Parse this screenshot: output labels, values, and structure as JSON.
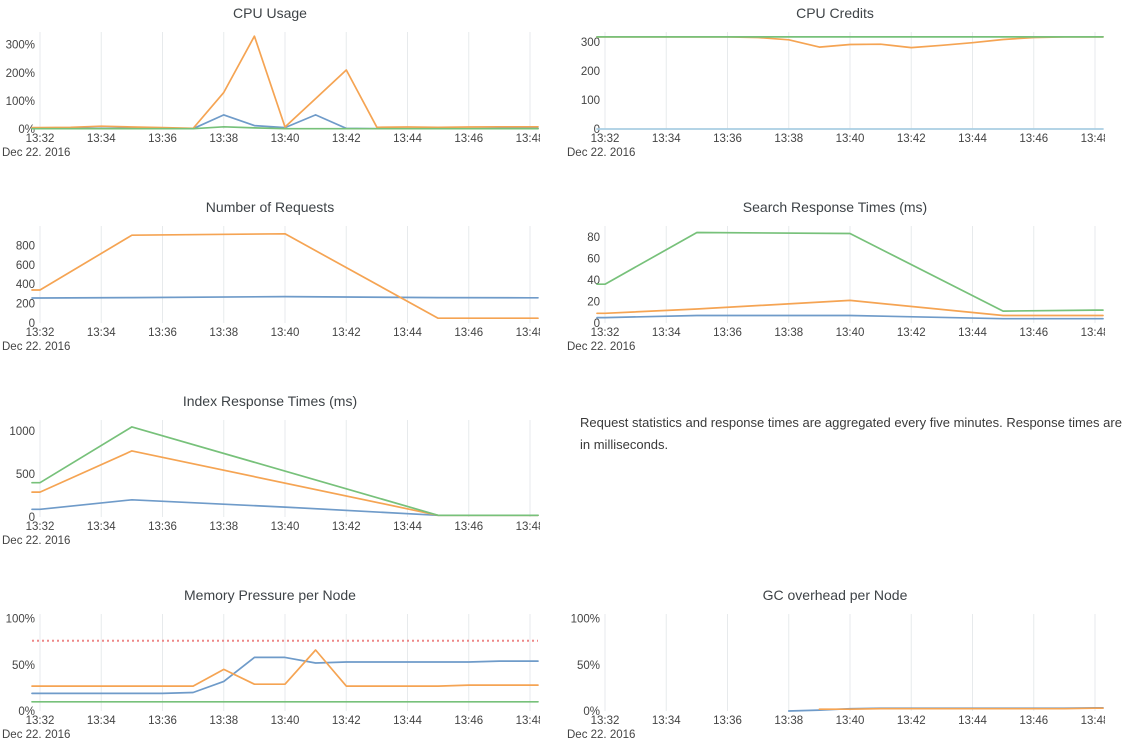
{
  "note": {
    "text": "Request statistics and response times are aggregated every five minutes. Response times are in milliseconds."
  },
  "colors": {
    "blue": "#6f9bc9",
    "orange": "#f5a453",
    "green": "#77c17a",
    "light_blue": "#a9cee3",
    "threshold_red": "#ee8787",
    "gridline": "#e7eaec",
    "tick_text": "#444444",
    "title_text": "#3e4347"
  },
  "chart_data": [
    {
      "type": "line",
      "title": "CPU Usage",
      "date_label": "Dec 22. 2016",
      "x_tick_labels": [
        "13:32",
        "13:34",
        "13:36",
        "13:38",
        "13:40",
        "13:42",
        "13:44",
        "13:46",
        "13:48"
      ],
      "x_tick_values": [
        0,
        2,
        4,
        6,
        8,
        10,
        12,
        14,
        16
      ],
      "x_range": [
        0,
        16
      ],
      "y_max": 345,
      "y_ticks": [
        {
          "value": 0,
          "label": "0%"
        },
        {
          "value": 100,
          "label": "100%"
        },
        {
          "value": 200,
          "label": "200%"
        },
        {
          "value": 300,
          "label": "300%"
        }
      ],
      "series": [
        {
          "name": "blue",
          "color": "#6f9bc9",
          "x": [
            0,
            1,
            2,
            3,
            4,
            5,
            6,
            7,
            8,
            9,
            10,
            11,
            12,
            13,
            14,
            15,
            16
          ],
          "y": [
            2,
            2,
            2,
            2,
            2,
            1,
            50,
            12,
            5,
            50,
            2,
            1,
            1,
            1,
            1,
            2,
            2
          ]
        },
        {
          "name": "orange",
          "color": "#f5a453",
          "x": [
            0,
            1,
            2,
            3,
            4,
            5,
            6,
            7,
            8,
            9,
            10,
            11,
            12,
            13,
            14,
            15,
            16
          ],
          "y": [
            5,
            6,
            10,
            7,
            5,
            2,
            130,
            330,
            7,
            108,
            210,
            6,
            7,
            6,
            7,
            8,
            8
          ]
        },
        {
          "name": "green",
          "color": "#77c17a",
          "x": [
            0,
            1,
            2,
            3,
            4,
            5,
            6,
            7,
            8,
            9,
            10,
            11,
            12,
            13,
            14,
            15,
            16
          ],
          "y": [
            1,
            1,
            1,
            1,
            1,
            1,
            8,
            4,
            1,
            1,
            1,
            1,
            1,
            1,
            1,
            1,
            1
          ]
        }
      ]
    },
    {
      "type": "line",
      "title": "CPU Credits",
      "date_label": "Dec 22. 2016",
      "x_tick_labels": [
        "13:32",
        "13:34",
        "13:36",
        "13:38",
        "13:40",
        "13:42",
        "13:44",
        "13:46",
        "13:48"
      ],
      "x_tick_values": [
        0,
        2,
        4,
        6,
        8,
        10,
        12,
        14,
        16
      ],
      "x_range": [
        0,
        16
      ],
      "y_max": 335,
      "y_ticks": [
        {
          "value": 0,
          "label": "0"
        },
        {
          "value": 100,
          "label": "100"
        },
        {
          "value": 200,
          "label": "200"
        },
        {
          "value": 300,
          "label": "300"
        }
      ],
      "series": [
        {
          "name": "blue",
          "color": "#a9cee3",
          "x": [
            0,
            1,
            2,
            3,
            4,
            5,
            6,
            7,
            8,
            9,
            10,
            11,
            12,
            13,
            14,
            15,
            16
          ],
          "y": [
            0,
            0,
            0,
            0,
            0,
            0,
            0,
            0,
            0,
            0,
            0,
            0,
            0,
            0,
            0,
            0,
            0
          ]
        },
        {
          "name": "orange",
          "color": "#f5a453",
          "x": [
            0,
            1,
            2,
            3,
            4,
            5,
            6,
            7,
            8,
            9,
            10,
            11,
            12,
            13,
            14,
            15,
            16
          ],
          "y": [
            318,
            318,
            318,
            318,
            318,
            316,
            308,
            283,
            292,
            293,
            281,
            289,
            298,
            309,
            316,
            318,
            318
          ]
        },
        {
          "name": "green",
          "color": "#77c17a",
          "x": [
            0,
            1,
            2,
            3,
            4,
            5,
            6,
            7,
            8,
            9,
            10,
            11,
            12,
            13,
            14,
            15,
            16
          ],
          "y": [
            318,
            318,
            318,
            318,
            318,
            318,
            318,
            318,
            318,
            318,
            318,
            318,
            318,
            318,
            318,
            318,
            318
          ]
        }
      ]
    },
    {
      "type": "line",
      "title": "Number of Requests",
      "date_label": "Dec 22. 2016",
      "x_tick_labels": [
        "13:32",
        "13:34",
        "13:36",
        "13:38",
        "13:40",
        "13:42",
        "13:44",
        "13:46",
        "13:48"
      ],
      "x_tick_values": [
        0,
        2,
        4,
        6,
        8,
        10,
        12,
        14,
        16
      ],
      "x_range": [
        0,
        16
      ],
      "y_max": 1000,
      "y_ticks": [
        {
          "value": 0,
          "label": "0"
        },
        {
          "value": 200,
          "label": "200"
        },
        {
          "value": 400,
          "label": "400"
        },
        {
          "value": 600,
          "label": "600"
        },
        {
          "value": 800,
          "label": "800"
        }
      ],
      "series": [
        {
          "name": "blue",
          "color": "#6f9bc9",
          "x": [
            0,
            3,
            8,
            13,
            16
          ],
          "y": [
            258,
            262,
            272,
            262,
            260
          ]
        },
        {
          "name": "orange",
          "color": "#f5a453",
          "x": [
            0,
            3,
            8,
            13,
            16
          ],
          "y": [
            340,
            905,
            920,
            50,
            50
          ]
        }
      ]
    },
    {
      "type": "line",
      "title": "Search Response Times (ms)",
      "date_label": "Dec 22. 2016",
      "x_tick_labels": [
        "13:32",
        "13:34",
        "13:36",
        "13:38",
        "13:40",
        "13:42",
        "13:44",
        "13:46",
        "13:48"
      ],
      "x_tick_values": [
        0,
        2,
        4,
        6,
        8,
        10,
        12,
        14,
        16
      ],
      "x_range": [
        0,
        16
      ],
      "y_max": 90,
      "y_ticks": [
        {
          "value": 0,
          "label": "0"
        },
        {
          "value": 20,
          "label": "20"
        },
        {
          "value": 40,
          "label": "40"
        },
        {
          "value": 60,
          "label": "60"
        },
        {
          "value": 80,
          "label": "80"
        }
      ],
      "series": [
        {
          "name": "blue",
          "color": "#6f9bc9",
          "x": [
            0,
            3,
            8,
            13,
            16
          ],
          "y": [
            5,
            7,
            7,
            4,
            4
          ]
        },
        {
          "name": "orange",
          "color": "#f5a453",
          "x": [
            0,
            3,
            8,
            13,
            16
          ],
          "y": [
            9,
            13,
            21,
            7,
            7
          ]
        },
        {
          "name": "green",
          "color": "#77c17a",
          "x": [
            0,
            3,
            8,
            13,
            16
          ],
          "y": [
            36,
            84,
            83,
            11,
            12
          ]
        }
      ]
    },
    {
      "type": "line",
      "title": "Index Response Times (ms)",
      "date_label": "Dec 22. 2016",
      "x_tick_labels": [
        "13:32",
        "13:34",
        "13:36",
        "13:38",
        "13:40",
        "13:42",
        "13:44",
        "13:46",
        "13:48"
      ],
      "x_tick_values": [
        0,
        2,
        4,
        6,
        8,
        10,
        12,
        14,
        16
      ],
      "x_range": [
        0,
        16
      ],
      "y_max": 1130,
      "y_ticks": [
        {
          "value": 0,
          "label": "0"
        },
        {
          "value": 500,
          "label": "500"
        },
        {
          "value": 1000,
          "label": "1000"
        }
      ],
      "series": [
        {
          "name": "blue",
          "color": "#6f9bc9",
          "x": [
            0,
            3,
            8,
            13,
            16
          ],
          "y": [
            90,
            200,
            115,
            20,
            20
          ]
        },
        {
          "name": "orange",
          "color": "#f5a453",
          "x": [
            0,
            3,
            13,
            16
          ],
          "y": [
            290,
            770,
            20,
            20
          ]
        },
        {
          "name": "green",
          "color": "#77c17a",
          "x": [
            0,
            3,
            13,
            16
          ],
          "y": [
            400,
            1050,
            20,
            20
          ]
        }
      ]
    },
    {
      "type": "line",
      "title": "Memory Pressure per Node",
      "date_label": "Dec 22. 2016",
      "x_tick_labels": [
        "13:32",
        "13:34",
        "13:36",
        "13:38",
        "13:40",
        "13:42",
        "13:44",
        "13:46",
        "13:48"
      ],
      "x_tick_values": [
        0,
        2,
        4,
        6,
        8,
        10,
        12,
        14,
        16
      ],
      "x_range": [
        0,
        16
      ],
      "y_max": 105,
      "y_ticks": [
        {
          "value": 0,
          "label": "0%"
        },
        {
          "value": 50,
          "label": "50%"
        },
        {
          "value": 100,
          "label": "100%"
        }
      ],
      "threshold": {
        "value": 76,
        "color": "#ee8787",
        "dash": "2,3"
      },
      "series": [
        {
          "name": "blue",
          "color": "#6f9bc9",
          "x": [
            0,
            1,
            2,
            3,
            4,
            5,
            6,
            7,
            8,
            9,
            10,
            11,
            12,
            13,
            14,
            15,
            16
          ],
          "y": [
            19,
            19,
            19,
            19,
            19,
            20,
            32,
            58,
            58,
            52,
            53,
            53,
            53,
            53,
            53,
            54,
            54
          ]
        },
        {
          "name": "orange",
          "color": "#f5a453",
          "x": [
            0,
            1,
            2,
            3,
            4,
            5,
            6,
            7,
            8,
            9,
            10,
            11,
            12,
            13,
            14,
            15,
            16
          ],
          "y": [
            27,
            27,
            27,
            27,
            27,
            27,
            45,
            29,
            29,
            66,
            27,
            27,
            27,
            27,
            28,
            28,
            28
          ]
        },
        {
          "name": "green",
          "color": "#77c17a",
          "x": [
            0,
            1,
            2,
            3,
            4,
            5,
            6,
            7,
            8,
            9,
            10,
            11,
            12,
            13,
            14,
            15,
            16
          ],
          "y": [
            10,
            10,
            10,
            10,
            10,
            10,
            10,
            10,
            10,
            10,
            10,
            10,
            10,
            10,
            10,
            10,
            10
          ]
        }
      ]
    },
    {
      "type": "line",
      "title": "GC overhead per Node",
      "date_label": "Dec 22. 2016",
      "x_tick_labels": [
        "13:32",
        "13:34",
        "13:36",
        "13:38",
        "13:40",
        "13:42",
        "13:44",
        "13:46",
        "13:48"
      ],
      "x_tick_values": [
        0,
        2,
        4,
        6,
        8,
        10,
        12,
        14,
        16
      ],
      "x_range": [
        0,
        16
      ],
      "y_max": 105,
      "y_ticks": [
        {
          "value": 0,
          "label": "0%"
        },
        {
          "value": 50,
          "label": "50%"
        },
        {
          "value": 100,
          "label": "100%"
        }
      ],
      "series": [
        {
          "name": "blue",
          "color": "#6f9bc9",
          "x": [
            6,
            7,
            8,
            9,
            10,
            11,
            12,
            13,
            14,
            15,
            16
          ],
          "y": [
            0,
            1,
            2.5,
            3,
            3,
            3,
            3,
            3,
            3,
            3,
            3.5
          ]
        },
        {
          "name": "orange",
          "color": "#f5a453",
          "x": [
            7,
            8,
            9,
            10,
            11,
            12,
            13,
            14,
            15,
            16
          ],
          "y": [
            2,
            2,
            2.5,
            2.5,
            2.5,
            2.5,
            2.5,
            2.5,
            2.5,
            3
          ]
        }
      ]
    }
  ]
}
